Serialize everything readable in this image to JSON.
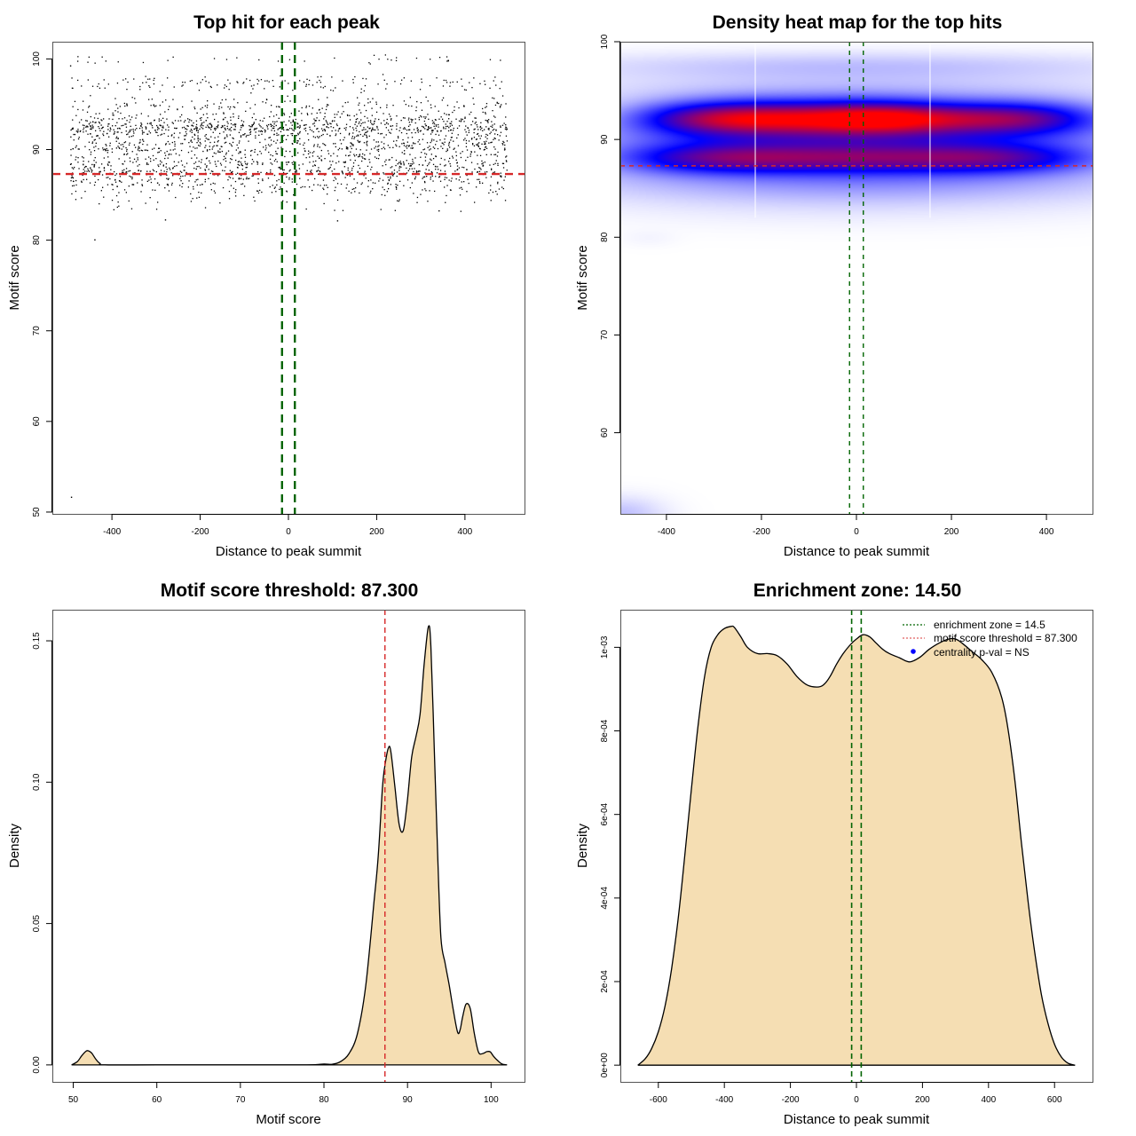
{
  "chart_data": [
    {
      "id": "scatter",
      "type": "scatter",
      "title": "Top hit for each peak",
      "xlabel": "Distance to peak summit",
      "ylabel": "Motif score",
      "xlim": [
        -535,
        535
      ],
      "ylim": [
        49.8,
        101.9
      ],
      "xticks": [
        -400,
        -200,
        0,
        200,
        400
      ],
      "yticks": [
        50,
        60,
        70,
        80,
        90,
        100
      ],
      "xtick_labels": [
        "-400",
        "-200",
        "0",
        "200",
        "400"
      ],
      "ytick_labels": [
        "50",
        "60",
        "70",
        "80",
        "90",
        "100"
      ],
      "point_color": "#000000",
      "x_range_of_points": [
        -495,
        495
      ],
      "approx_point_count": 2600,
      "score_bands": [
        {
          "score": 100.0,
          "weight": 0.012
        },
        {
          "score": 97.6,
          "weight": 0.035
        },
        {
          "score": 96.9,
          "weight": 0.02
        },
        {
          "score": 95.5,
          "weight": 0.02
        },
        {
          "score": 94.8,
          "weight": 0.035
        },
        {
          "score": 94.0,
          "weight": 0.03
        },
        {
          "score": 93.3,
          "weight": 0.07
        },
        {
          "score": 92.6,
          "weight": 0.1
        },
        {
          "score": 92.2,
          "weight": 0.1
        },
        {
          "score": 91.5,
          "weight": 0.06
        },
        {
          "score": 90.8,
          "weight": 0.07
        },
        {
          "score": 90.2,
          "weight": 0.06
        },
        {
          "score": 89.5,
          "weight": 0.05
        },
        {
          "score": 88.8,
          "weight": 0.06
        },
        {
          "score": 88.2,
          "weight": 0.07
        },
        {
          "score": 87.6,
          "weight": 0.07
        },
        {
          "score": 86.9,
          "weight": 0.05
        },
        {
          "score": 86.2,
          "weight": 0.04
        },
        {
          "score": 85.5,
          "weight": 0.03
        },
        {
          "score": 84.5,
          "weight": 0.015
        },
        {
          "score": 83.5,
          "weight": 0.008
        }
      ],
      "outliers": [
        {
          "x": -493,
          "y": 51.7
        },
        {
          "x": -440,
          "y": 80.1
        },
        {
          "x": -495,
          "y": 99.3
        },
        {
          "x": -280,
          "y": 82.3
        },
        {
          "x": 110,
          "y": 82.2
        },
        {
          "x": 340,
          "y": 83.3
        }
      ],
      "hlines": [
        {
          "y": 87.3,
          "color": "#d62728",
          "style": "dashed",
          "label": "motif score threshold"
        }
      ],
      "vlines": [
        {
          "x": -14.5,
          "color": "#006400",
          "style": "dashed"
        },
        {
          "x": 14.5,
          "color": "#006400",
          "style": "dashed"
        }
      ],
      "grid": false
    },
    {
      "id": "heatmap",
      "type": "heatmap",
      "title": "Density heat map for the top hits",
      "xlabel": "Distance to peak summit",
      "ylabel": "Motif score",
      "xlim": [
        -497,
        497
      ],
      "ylim": [
        51.7,
        100
      ],
      "xticks": [
        -400,
        -200,
        0,
        200,
        400
      ],
      "yticks": [
        60,
        70,
        80,
        90,
        100
      ],
      "xtick_labels": [
        "-400",
        "-200",
        "0",
        "200",
        "400"
      ],
      "ytick_labels": [
        "60",
        "70",
        "80",
        "90",
        "100"
      ],
      "colormap": [
        "#ffffff",
        "#0000ff",
        "#ff0000"
      ],
      "density_components": [
        {
          "y": 92.3,
          "ysd": 1.2,
          "x": -290,
          "xsd": 130,
          "w": 1.0
        },
        {
          "y": 92.3,
          "ysd": 1.2,
          "x": 70,
          "xsd": 120,
          "w": 1.05
        },
        {
          "y": 92.3,
          "ysd": 1.2,
          "x": 330,
          "xsd": 130,
          "w": 1.05
        },
        {
          "y": 92.3,
          "ysd": 1.3,
          "x": -100,
          "xsd": 150,
          "w": 0.8
        },
        {
          "y": 88.2,
          "ysd": 1.1,
          "x": -300,
          "xsd": 150,
          "w": 0.85
        },
        {
          "y": 88.2,
          "ysd": 1.1,
          "x": 0,
          "xsd": 170,
          "w": 0.8
        },
        {
          "y": 88.2,
          "ysd": 1.1,
          "x": 300,
          "xsd": 150,
          "w": 0.8
        },
        {
          "y": 90.3,
          "ysd": 1.3,
          "x": 0,
          "xsd": 400,
          "w": 0.45
        },
        {
          "y": 86.0,
          "ysd": 1.5,
          "x": 0,
          "xsd": 400,
          "w": 0.3
        },
        {
          "y": 97.6,
          "ysd": 1.0,
          "x": 0,
          "xsd": 420,
          "w": 0.16
        },
        {
          "y": 95.0,
          "ysd": 1.3,
          "x": 0,
          "xsd": 420,
          "w": 0.15
        },
        {
          "y": 83.5,
          "ysd": 1.6,
          "x": 0,
          "xsd": 400,
          "w": 0.05
        },
        {
          "y": 80.0,
          "ysd": 0.6,
          "x": -440,
          "xsd": 40,
          "w": 0.02
        },
        {
          "y": 51.7,
          "ysd": 1.2,
          "x": -497,
          "xsd": 60,
          "w": 0.16
        }
      ],
      "seams_x": [
        -213,
        155
      ],
      "hlines": [
        {
          "y": 87.3,
          "color": "#d62728",
          "style": "dashed"
        }
      ],
      "vlines": [
        {
          "x": -14.5,
          "color": "#006400",
          "style": "dashed"
        },
        {
          "x": 14.5,
          "color": "#006400",
          "style": "dashed"
        }
      ],
      "grid": false
    },
    {
      "id": "score-density",
      "type": "area",
      "title": "Motif score threshold: 87.300",
      "xlabel": "Motif score",
      "ylabel": "Density",
      "xlim": [
        47.5,
        104.0
      ],
      "ylim": [
        -0.006,
        0.161
      ],
      "xticks": [
        50,
        60,
        70,
        80,
        90,
        100
      ],
      "yticks": [
        0.0,
        0.05,
        0.1,
        0.15
      ],
      "xtick_labels": [
        "50",
        "60",
        "70",
        "80",
        "90",
        "100"
      ],
      "ytick_labels": [
        "0.00",
        "0.05",
        "0.10",
        "0.15"
      ],
      "fill_color": "#f5deb3",
      "x": [
        49.8,
        50.5,
        51.0,
        51.5,
        51.8,
        52.2,
        52.7,
        53.2,
        53.8,
        60,
        70,
        78,
        80,
        81,
        82,
        83,
        84,
        85,
        86,
        86.5,
        87.0,
        87.3,
        87.7,
        88.0,
        88.5,
        89.0,
        89.5,
        90.0,
        90.5,
        91.0,
        91.5,
        92.0,
        92.5,
        92.8,
        93.2,
        93.6,
        94.0,
        94.5,
        95.0,
        95.5,
        96.0,
        96.3,
        96.6,
        97.0,
        97.5,
        98.0,
        98.5,
        99.0,
        99.5,
        99.9,
        100.3,
        100.8,
        101.3,
        101.9
      ],
      "y": [
        0.0,
        0.0012,
        0.0032,
        0.0048,
        0.005,
        0.0042,
        0.002,
        0.0005,
        0.0,
        0.0,
        0.0,
        0.0,
        0.0003,
        0.0002,
        0.0012,
        0.004,
        0.011,
        0.028,
        0.058,
        0.074,
        0.098,
        0.106,
        0.112,
        0.111,
        0.098,
        0.085,
        0.083,
        0.094,
        0.109,
        0.116,
        0.124,
        0.142,
        0.155,
        0.148,
        0.112,
        0.075,
        0.045,
        0.036,
        0.028,
        0.019,
        0.0115,
        0.0125,
        0.017,
        0.0215,
        0.02,
        0.011,
        0.0045,
        0.004,
        0.0047,
        0.0046,
        0.003,
        0.0015,
        0.0003,
        0.0
      ],
      "vlines": [
        {
          "x": 87.3,
          "color": "#d62728",
          "style": "dashed",
          "label": "motif score threshold"
        }
      ],
      "grid": false
    },
    {
      "id": "distance-density",
      "type": "area",
      "title": "Enrichment zone: 14.50",
      "xlabel": "Distance to peak summit",
      "ylabel": "Density",
      "xlim": [
        -715,
        715
      ],
      "ylim": [
        -4e-05,
        0.00109
      ],
      "xticks": [
        -600,
        -400,
        -200,
        0,
        200,
        400,
        600
      ],
      "yticks": [
        0,
        0.0002,
        0.0004,
        0.0006,
        0.0008,
        0.001
      ],
      "xtick_labels": [
        "-600",
        "-400",
        "-200",
        "0",
        "200",
        "400",
        "600"
      ],
      "ytick_labels": [
        "0e+00",
        "2e-04",
        "4e-04",
        "6e-04",
        "8e-04",
        "1e-03"
      ],
      "fill_color": "#f5deb3",
      "x": [
        -662,
        -640,
        -620,
        -600,
        -580,
        -560,
        -540,
        -520,
        -500,
        -480,
        -460,
        -440,
        -420,
        -400,
        -380,
        -370,
        -350,
        -330,
        -300,
        -270,
        -240,
        -210,
        -180,
        -150,
        -120,
        -100,
        -80,
        -60,
        -40,
        -20,
        0,
        20,
        40,
        60,
        80,
        100,
        130,
        160,
        190,
        220,
        250,
        280,
        300,
        320,
        350,
        380,
        410,
        440,
        460,
        480,
        500,
        520,
        540,
        560,
        580,
        600,
        620,
        640,
        662
      ],
      "y": [
        0.0,
        1.5e-05,
        4e-05,
        8e-05,
        0.00014,
        0.00023,
        0.00035,
        0.0005,
        0.00066,
        0.00081,
        0.00093,
        0.001,
        0.00103,
        0.001045,
        0.00105,
        0.001048,
        0.001025,
        0.001,
        0.000985,
        0.000985,
        0.00098,
        0.00096,
        0.00093,
        0.00091,
        0.000905,
        0.00091,
        0.00093,
        0.00096,
        0.000985,
        0.001005,
        0.00102,
        0.00103,
        0.001025,
        0.00101,
        0.000995,
        0.000985,
        0.000975,
        0.000965,
        0.000975,
        0.000995,
        0.00101,
        0.00102,
        0.00102,
        0.00101,
        0.00099,
        0.00097,
        0.00094,
        0.00088,
        0.0008,
        0.00068,
        0.00053,
        0.00039,
        0.00027,
        0.00017,
        0.0001,
        5e-05,
        2e-05,
        5e-06,
        0.0
      ],
      "vlines": [
        {
          "x": -14.5,
          "color": "#006400",
          "style": "dashed"
        },
        {
          "x": 14.5,
          "color": "#006400",
          "style": "dashed"
        }
      ],
      "legend": {
        "placement": "top-right",
        "entries": [
          {
            "label": "enrichment zone = 14.5",
            "symbol": "dotted-line",
            "color": "#006400"
          },
          {
            "label": "motif score threshold = 87.300",
            "symbol": "dotted-line",
            "color": "#e06060"
          },
          {
            "label": "centrality p-val = NS",
            "symbol": "dot",
            "color": "#0000ff"
          }
        ]
      },
      "grid": false
    }
  ]
}
